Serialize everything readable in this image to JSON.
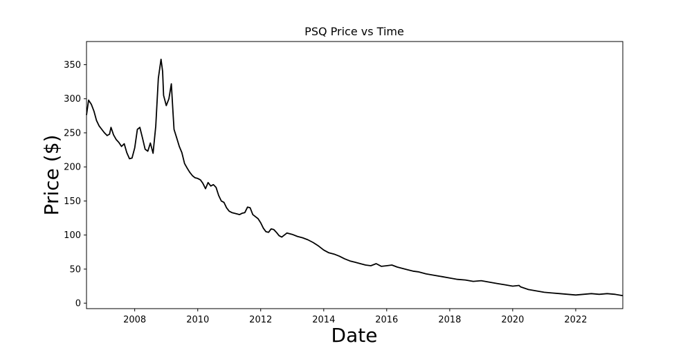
{
  "chart_data": {
    "type": "line",
    "title": "PSQ Price vs Time",
    "xlabel": "Date",
    "ylabel": "Price ($)",
    "xlim": [
      "2006-06-21",
      "2023-07-01"
    ],
    "ylim": [
      -8,
      384
    ],
    "grid": false,
    "legend": "none",
    "line_color": "#000000",
    "x_ticks": [
      "2008",
      "2010",
      "2012",
      "2014",
      "2016",
      "2018",
      "2020",
      "2022"
    ],
    "y_ticks": [
      "0",
      "50",
      "100",
      "150",
      "200",
      "250",
      "300",
      "350"
    ],
    "series": [
      {
        "points": [
          [
            "2006-06-21",
            276
          ],
          [
            "2006-07-15",
            298
          ],
          [
            "2006-08-15",
            292
          ],
          [
            "2006-09-15",
            282
          ],
          [
            "2006-10-15",
            268
          ],
          [
            "2006-11-15",
            260
          ],
          [
            "2006-12-15",
            255
          ],
          [
            "2007-01-15",
            250
          ],
          [
            "2007-02-15",
            246
          ],
          [
            "2007-03-15",
            248
          ],
          [
            "2007-04-01",
            258
          ],
          [
            "2007-05-01",
            247
          ],
          [
            "2007-06-01",
            240
          ],
          [
            "2007-07-01",
            236
          ],
          [
            "2007-08-01",
            230
          ],
          [
            "2007-09-01",
            234
          ],
          [
            "2007-10-01",
            221
          ],
          [
            "2007-11-01",
            212
          ],
          [
            "2007-12-01",
            213
          ],
          [
            "2008-01-01",
            228
          ],
          [
            "2008-02-01",
            255
          ],
          [
            "2008-03-01",
            258
          ],
          [
            "2008-04-01",
            242
          ],
          [
            "2008-05-01",
            226
          ],
          [
            "2008-06-01",
            223
          ],
          [
            "2008-07-01",
            235
          ],
          [
            "2008-08-01",
            220
          ],
          [
            "2008-09-01",
            260
          ],
          [
            "2008-10-01",
            330
          ],
          [
            "2008-11-01",
            358
          ],
          [
            "2008-11-20",
            340
          ],
          [
            "2008-12-01",
            305
          ],
          [
            "2009-01-01",
            290
          ],
          [
            "2009-02-01",
            300
          ],
          [
            "2009-03-01",
            322
          ],
          [
            "2009-03-20",
            280
          ],
          [
            "2009-04-01",
            255
          ],
          [
            "2009-05-01",
            243
          ],
          [
            "2009-06-01",
            230
          ],
          [
            "2009-07-01",
            221
          ],
          [
            "2009-08-01",
            205
          ],
          [
            "2009-09-01",
            198
          ],
          [
            "2009-10-01",
            192
          ],
          [
            "2009-11-01",
            187
          ],
          [
            "2009-12-01",
            184
          ],
          [
            "2010-01-01",
            183
          ],
          [
            "2010-02-01",
            181
          ],
          [
            "2010-03-01",
            176
          ],
          [
            "2010-04-01",
            168
          ],
          [
            "2010-05-01",
            177
          ],
          [
            "2010-06-01",
            172
          ],
          [
            "2010-07-01",
            174
          ],
          [
            "2010-08-01",
            170
          ],
          [
            "2010-09-01",
            158
          ],
          [
            "2010-10-01",
            150
          ],
          [
            "2010-11-01",
            148
          ],
          [
            "2010-12-01",
            140
          ],
          [
            "2011-01-01",
            135
          ],
          [
            "2011-02-01",
            133
          ],
          [
            "2011-03-01",
            132
          ],
          [
            "2011-04-01",
            131
          ],
          [
            "2011-05-01",
            130
          ],
          [
            "2011-06-01",
            132
          ],
          [
            "2011-07-01",
            133
          ],
          [
            "2011-08-01",
            141
          ],
          [
            "2011-09-01",
            140
          ],
          [
            "2011-10-01",
            130
          ],
          [
            "2011-11-01",
            127
          ],
          [
            "2011-12-01",
            124
          ],
          [
            "2012-01-01",
            118
          ],
          [
            "2012-02-01",
            110
          ],
          [
            "2012-03-01",
            105
          ],
          [
            "2012-04-01",
            104
          ],
          [
            "2012-05-01",
            109
          ],
          [
            "2012-06-01",
            108
          ],
          [
            "2012-07-01",
            104
          ],
          [
            "2012-08-01",
            99
          ],
          [
            "2012-09-01",
            97
          ],
          [
            "2012-10-01",
            100
          ],
          [
            "2012-11-01",
            103
          ],
          [
            "2013-01-01",
            101
          ],
          [
            "2013-03-01",
            98
          ],
          [
            "2013-05-01",
            96
          ],
          [
            "2013-07-01",
            93
          ],
          [
            "2013-09-01",
            89
          ],
          [
            "2013-11-01",
            84
          ],
          [
            "2014-01-01",
            78
          ],
          [
            "2014-03-01",
            74
          ],
          [
            "2014-05-01",
            72
          ],
          [
            "2014-07-01",
            69
          ],
          [
            "2014-09-01",
            65
          ],
          [
            "2014-11-01",
            62
          ],
          [
            "2015-01-01",
            60
          ],
          [
            "2015-03-01",
            58
          ],
          [
            "2015-05-01",
            56
          ],
          [
            "2015-07-01",
            55
          ],
          [
            "2015-09-01",
            58
          ],
          [
            "2015-11-01",
            54
          ],
          [
            "2016-01-01",
            55
          ],
          [
            "2016-03-01",
            56
          ],
          [
            "2016-05-01",
            53
          ],
          [
            "2016-07-01",
            51
          ],
          [
            "2016-09-01",
            49
          ],
          [
            "2016-11-01",
            47
          ],
          [
            "2017-01-01",
            46
          ],
          [
            "2017-04-01",
            43
          ],
          [
            "2017-07-01",
            41
          ],
          [
            "2017-10-01",
            39
          ],
          [
            "2018-01-01",
            37
          ],
          [
            "2018-04-01",
            35
          ],
          [
            "2018-07-01",
            34
          ],
          [
            "2018-10-01",
            32
          ],
          [
            "2019-01-01",
            33
          ],
          [
            "2019-04-01",
            31
          ],
          [
            "2019-07-01",
            29
          ],
          [
            "2019-10-01",
            27
          ],
          [
            "2020-01-01",
            25
          ],
          [
            "2020-03-15",
            26
          ],
          [
            "2020-04-01",
            24
          ],
          [
            "2020-07-01",
            20
          ],
          [
            "2020-10-01",
            18
          ],
          [
            "2021-01-01",
            16
          ],
          [
            "2021-04-01",
            15
          ],
          [
            "2021-07-01",
            14
          ],
          [
            "2021-10-01",
            13
          ],
          [
            "2022-01-01",
            12
          ],
          [
            "2022-04-01",
            13
          ],
          [
            "2022-07-01",
            14
          ],
          [
            "2022-10-01",
            13
          ],
          [
            "2023-01-01",
            14
          ],
          [
            "2023-04-01",
            13
          ],
          [
            "2023-07-01",
            11
          ]
        ]
      }
    ]
  }
}
